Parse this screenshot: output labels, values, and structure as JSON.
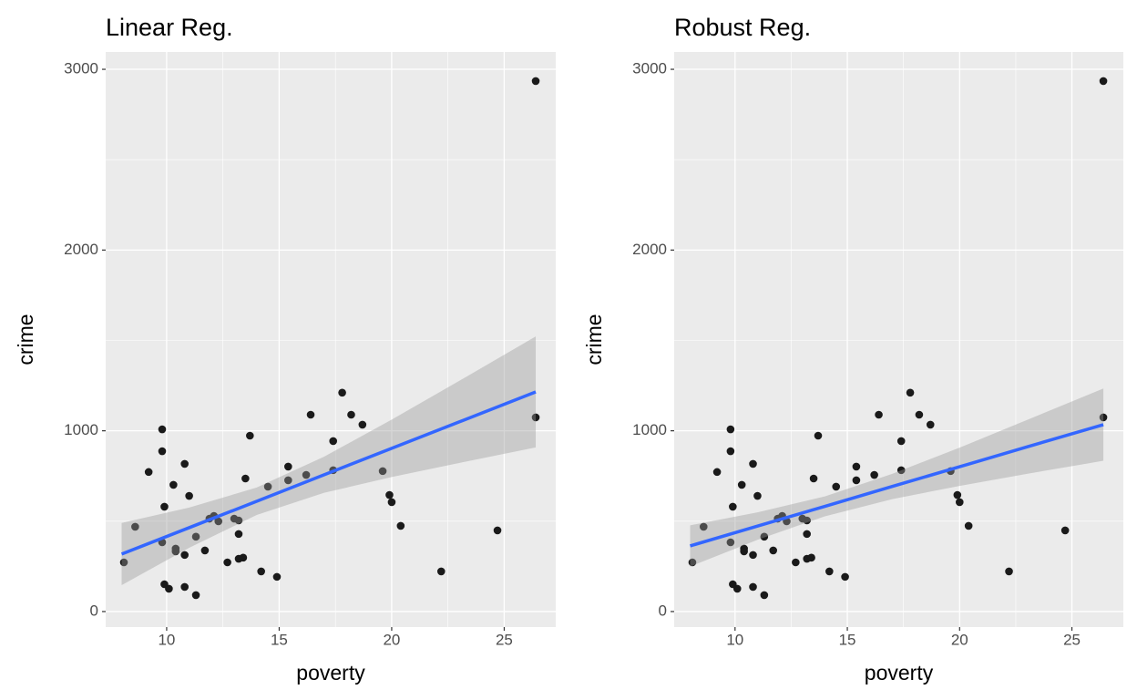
{
  "chart_data": [
    {
      "type": "scatter",
      "title": "Linear Reg.",
      "x_label": "poverty",
      "y_label": "crime",
      "x": [
        8.1,
        8.6,
        9.2,
        9.8,
        9.8,
        9.8,
        9.9,
        9.9,
        10.1,
        10.3,
        10.4,
        10.4,
        10.8,
        10.8,
        10.8,
        11.0,
        11.3,
        11.3,
        11.7,
        11.9,
        12.1,
        12.3,
        12.7,
        13.0,
        13.2,
        13.2,
        13.2,
        13.4,
        13.5,
        13.7,
        14.2,
        14.5,
        14.9,
        15.4,
        15.4,
        16.2,
        16.4,
        17.4,
        17.4,
        17.8,
        18.2,
        18.7,
        19.6,
        19.9,
        20.0,
        20.4,
        22.2,
        24.7,
        26.4,
        26.4
      ],
      "y": [
        272,
        469,
        772,
        1008,
        887,
        383,
        580,
        151,
        126,
        701,
        348,
        333,
        817,
        136,
        313,
        640,
        91,
        414,
        338,
        514,
        529,
        499,
        272,
        514,
        504,
        429,
        292,
        298,
        736,
        973,
        222,
        691,
        192,
        802,
        726,
        756,
        1089,
        943,
        782,
        1211,
        1089,
        1034,
        777,
        645,
        605,
        474,
        222,
        449,
        2935,
        1074
      ],
      "point_color": "#1a1a1a",
      "fit": {
        "x": [
          8,
          11,
          14,
          17,
          20,
          23,
          26.4
        ],
        "y": [
          318,
          464,
          610,
          757,
          903,
          1049,
          1215
        ],
        "lower": [
          146,
          353,
          534,
          657,
          744,
          822,
          908
        ],
        "upper": [
          490,
          575,
          686,
          857,
          1062,
          1276,
          1522
        ],
        "color": "#3366ff",
        "band_color": "#999999"
      },
      "xlim": [
        7.29,
        27.29
      ],
      "ylim": [
        -86,
        3096
      ],
      "xticks": [
        10,
        15,
        20,
        25
      ],
      "yticks": [
        0,
        1000,
        2000,
        3000
      ],
      "grid": true
    },
    {
      "type": "scatter",
      "title": "Robust Reg.",
      "x_label": "poverty",
      "y_label": "crime",
      "x": [
        8.1,
        8.6,
        9.2,
        9.8,
        9.8,
        9.8,
        9.9,
        9.9,
        10.1,
        10.3,
        10.4,
        10.4,
        10.8,
        10.8,
        10.8,
        11.0,
        11.3,
        11.3,
        11.7,
        11.9,
        12.1,
        12.3,
        12.7,
        13.0,
        13.2,
        13.2,
        13.2,
        13.4,
        13.5,
        13.7,
        14.2,
        14.5,
        14.9,
        15.4,
        15.4,
        16.2,
        16.4,
        17.4,
        17.4,
        17.8,
        18.2,
        18.7,
        19.6,
        19.9,
        20.0,
        20.4,
        22.2,
        24.7,
        26.4,
        26.4
      ],
      "y": [
        272,
        469,
        772,
        1008,
        887,
        383,
        580,
        151,
        126,
        701,
        348,
        333,
        817,
        136,
        313,
        640,
        91,
        414,
        338,
        514,
        529,
        499,
        272,
        514,
        504,
        429,
        292,
        298,
        736,
        973,
        222,
        691,
        192,
        802,
        726,
        756,
        1089,
        943,
        782,
        1211,
        1089,
        1034,
        777,
        645,
        605,
        474,
        222,
        449,
        2935,
        1074
      ],
      "point_color": "#1a1a1a",
      "fit": {
        "x": [
          8,
          11,
          14,
          17,
          20,
          23,
          26.4
        ],
        "y": [
          363,
          473,
          582,
          692,
          801,
          911,
          1034
        ],
        "lower": [
          249,
          397,
          527,
          622,
          695,
          762,
          834
        ],
        "upper": [
          477,
          549,
          637,
          762,
          907,
          1060,
          1234
        ],
        "color": "#3366ff",
        "band_color": "#999999"
      },
      "xlim": [
        7.29,
        27.29
      ],
      "ylim": [
        -86,
        3096
      ],
      "xticks": [
        10,
        15,
        20,
        25
      ],
      "yticks": [
        0,
        1000,
        2000,
        3000
      ],
      "grid": true
    }
  ]
}
